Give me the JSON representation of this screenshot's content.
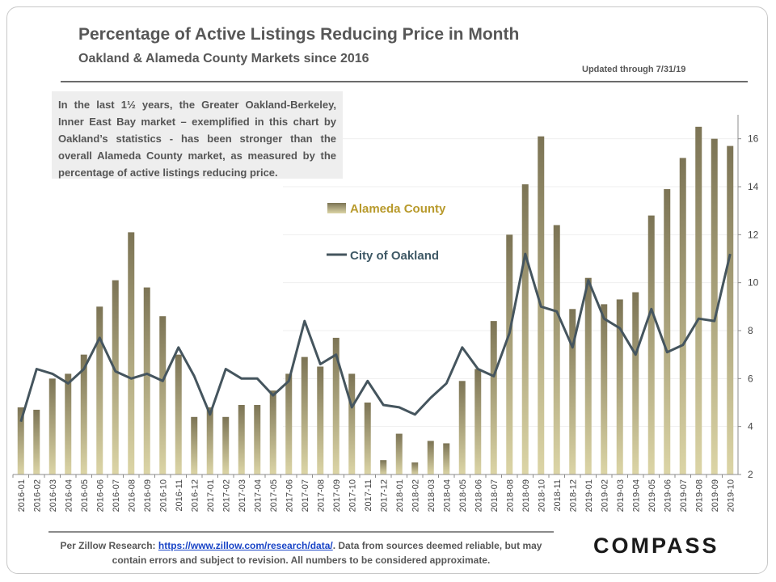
{
  "header": {
    "title": "Percentage of Active Listings Reducing Price in Month",
    "subtitle": "Oakland & Alameda County Markets since 2016",
    "updated": "Updated through 7/31/19"
  },
  "note": "In the last 1½ years, the Greater Oakland-Berkeley, Inner East Bay market – exemplified in this chart by Oakland’s statistics - has been stronger than the overall Alameda County market, as measured by the percentage of active listings reducing price.",
  "footer": {
    "prefix": "Per Zillow Research: ",
    "link": "https://www.zillow.com/research/data/",
    "suffix": ". Data from sources deemed reliable, but may contain errors and subject to revision. All numbers to be considered approximate."
  },
  "logo": "COMPASS",
  "colors": {
    "bar_top": "#7c7455",
    "bar_bottom": "#dcd5a6",
    "line": "#45555e",
    "legend_alameda": "#b89a2c",
    "legend_oakland": "#3f5966"
  },
  "chart_data": {
    "type": "bar",
    "x": [
      "2016-01",
      "2016-02",
      "2016-03",
      "2016-04",
      "2016-05",
      "2016-06",
      "2016-07",
      "2016-08",
      "2016-09",
      "2016-10",
      "2016-11",
      "2016-12",
      "2017-01",
      "2017-02",
      "2017-03",
      "2017-04",
      "2017-05",
      "2017-06",
      "2017-07",
      "2017-08",
      "2017-09",
      "2017-10",
      "2017-11",
      "2017-12",
      "2018-01",
      "2018-02",
      "2018-03",
      "2018-04",
      "2018-05",
      "2018-06",
      "2018-07",
      "2018-08",
      "2018-09",
      "2018-10",
      "2018-11",
      "2018-12",
      "2019-01",
      "2019-02",
      "2019-03",
      "2019-04",
      "2019-05",
      "2019-06",
      "2019-07",
      "2019-08",
      "2019-09",
      "2019-10"
    ],
    "series": [
      {
        "name": "Alameda County",
        "type": "bar",
        "values": [
          4.8,
          4.7,
          6.0,
          6.2,
          7.0,
          9.0,
          10.1,
          12.1,
          9.8,
          8.6,
          7.0,
          4.4,
          4.8,
          4.4,
          4.9,
          4.9,
          5.5,
          6.2,
          6.9,
          6.5,
          7.7,
          6.2,
          5.0,
          2.6,
          3.7,
          2.5,
          3.4,
          3.3,
          5.9,
          6.4,
          8.4,
          12.0,
          14.1,
          16.1,
          12.4,
          8.9,
          10.2,
          9.1,
          9.3,
          9.6,
          12.8,
          13.9,
          15.2,
          16.5,
          16.0,
          15.7
        ]
      },
      {
        "name": "City of Oakland",
        "type": "line",
        "values": [
          4.2,
          6.4,
          6.2,
          5.8,
          6.4,
          7.7,
          6.3,
          6.0,
          6.2,
          5.9,
          7.3,
          6.1,
          4.5,
          6.4,
          6.0,
          6.0,
          5.3,
          5.9,
          8.4,
          6.6,
          7.0,
          4.8,
          5.9,
          4.9,
          4.8,
          4.5,
          5.2,
          5.8,
          7.3,
          6.4,
          6.1,
          7.9,
          11.2,
          9.0,
          8.8,
          7.3,
          10.1,
          8.5,
          8.1,
          7.0,
          8.9,
          7.1,
          7.4,
          8.5,
          8.4,
          11.2
        ]
      }
    ],
    "yticks": [
      2,
      4,
      6,
      8,
      10,
      12,
      14,
      16
    ],
    "ylim": [
      2,
      17
    ],
    "legend": [
      "Alameda County",
      "City of Oakland"
    ],
    "legend_position": "top-center",
    "grid": false
  }
}
